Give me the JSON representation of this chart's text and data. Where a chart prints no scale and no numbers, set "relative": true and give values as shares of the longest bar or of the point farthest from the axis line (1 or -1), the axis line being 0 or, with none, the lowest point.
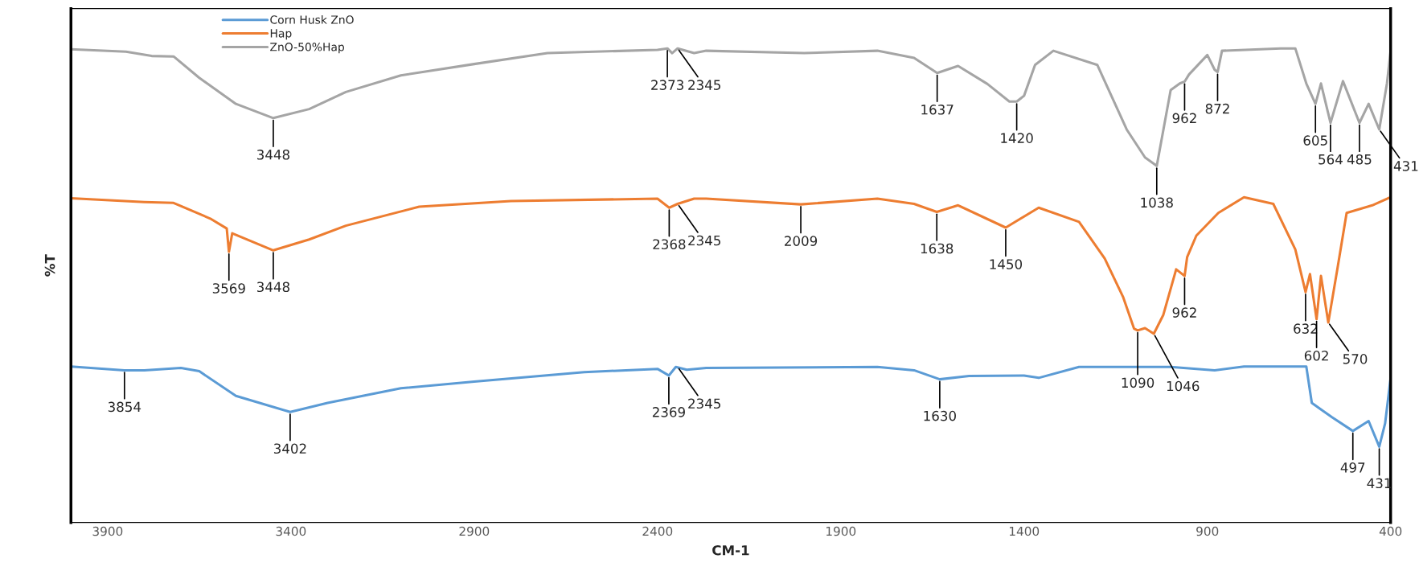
{
  "chart_data": {
    "type": "line",
    "xlabel": "CM-1",
    "ylabel": "%T",
    "relative": true,
    "tick_labels": "x",
    "grid": false,
    "legend": "top left",
    "xlim": [
      4000,
      400
    ],
    "xticks": [
      3900,
      3400,
      2900,
      2400,
      1900,
      1400,
      900,
      400
    ],
    "series": [
      {
        "name": "Corn Husk ZnO",
        "color": "#5b9bd5",
        "x": [
          4000,
          3854,
          3800,
          3700,
          3650,
          3550,
          3402,
          3300,
          3100,
          2900,
          2600,
          2400,
          2369,
          2350,
          2320,
          2267,
          1800,
          1700,
          1630,
          1550,
          1400,
          1360,
          1250,
          1000,
          880,
          800,
          650,
          630,
          615,
          560,
          503,
          460,
          431,
          415,
          400
        ],
        "values": [
          0.329,
          0.321,
          0.321,
          0.326,
          0.319,
          0.267,
          0.233,
          0.252,
          0.283,
          0.297,
          0.317,
          0.324,
          0.31,
          0.328,
          0.322,
          0.326,
          0.328,
          0.321,
          0.302,
          0.309,
          0.31,
          0.305,
          0.328,
          0.328,
          0.321,
          0.329,
          0.329,
          0.329,
          0.252,
          0.222,
          0.193,
          0.214,
          0.16,
          0.209,
          0.305
        ]
      },
      {
        "name": "Hap",
        "color": "#ed7d31",
        "x": [
          4000,
          3800,
          3720,
          3620,
          3575,
          3569,
          3560,
          3448,
          3350,
          3250,
          3050,
          2800,
          2400,
          2368,
          2345,
          2300,
          2267,
          2009,
          1800,
          1700,
          1638,
          1580,
          1450,
          1360,
          1250,
          1180,
          1130,
          1100,
          1090,
          1070,
          1046,
          1020,
          985,
          962,
          955,
          930,
          870,
          800,
          720,
          660,
          632,
          620,
          602,
          590,
          570,
          545,
          520,
          450,
          400
        ],
        "values": [
          0.684,
          0.676,
          0.674,
          0.641,
          0.62,
          0.571,
          0.61,
          0.574,
          0.597,
          0.626,
          0.666,
          0.678,
          0.683,
          0.664,
          0.672,
          0.683,
          0.683,
          0.671,
          0.683,
          0.672,
          0.655,
          0.669,
          0.622,
          0.664,
          0.634,
          0.557,
          0.476,
          0.409,
          0.405,
          0.41,
          0.398,
          0.438,
          0.534,
          0.52,
          0.56,
          0.605,
          0.653,
          0.686,
          0.672,
          0.576,
          0.486,
          0.524,
          0.429,
          0.52,
          0.422,
          0.536,
          0.653,
          0.669,
          0.686
        ]
      },
      {
        "name": "ZnO-50%Hap",
        "color": "#a5a5a5",
        "x": [
          4000,
          3850,
          3780,
          3720,
          3650,
          3550,
          3448,
          3350,
          3250,
          3100,
          2900,
          2700,
          2400,
          2373,
          2360,
          2345,
          2300,
          2267,
          2000,
          1800,
          1700,
          1637,
          1580,
          1500,
          1440,
          1420,
          1400,
          1370,
          1320,
          1200,
          1120,
          1070,
          1038,
          1000,
          975,
          962,
          950,
          900,
          880,
          872,
          860,
          700,
          660,
          630,
          605,
          590,
          564,
          530,
          485,
          460,
          431,
          410,
          400
        ],
        "values": [
          0.998,
          0.993,
          0.984,
          0.983,
          0.938,
          0.883,
          0.853,
          0.872,
          0.908,
          0.943,
          0.967,
          0.99,
          0.997,
          1.0,
          0.99,
          1.0,
          0.99,
          0.995,
          0.99,
          0.995,
          0.98,
          0.948,
          0.963,
          0.925,
          0.888,
          0.888,
          0.9,
          0.965,
          0.995,
          0.965,
          0.829,
          0.77,
          0.752,
          0.912,
          0.926,
          0.93,
          0.945,
          0.986,
          0.955,
          0.95,
          0.995,
          1.0,
          1.0,
          0.926,
          0.883,
          0.926,
          0.843,
          0.931,
          0.843,
          0.883,
          0.829,
          0.926,
          0.995
        ]
      }
    ],
    "annotations": [
      {
        "text": "3448",
        "x": 3448,
        "y": 0.853
      },
      {
        "text": "2373",
        "x": 2373,
        "y": 1.0
      },
      {
        "text": "2345",
        "x": 2345,
        "y": 1.0
      },
      {
        "text": "1637",
        "x": 1637,
        "y": 0.948
      },
      {
        "text": "1420",
        "x": 1420,
        "y": 0.888
      },
      {
        "text": "1038",
        "x": 1038,
        "y": 0.752
      },
      {
        "text": "962",
        "x": 962,
        "y": 0.93
      },
      {
        "text": "872",
        "x": 872,
        "y": 0.95
      },
      {
        "text": "605",
        "x": 605,
        "y": 0.883
      },
      {
        "text": "564",
        "x": 564,
        "y": 0.843
      },
      {
        "text": "485",
        "x": 485,
        "y": 0.843
      },
      {
        "text": "431",
        "x": 431,
        "y": 0.829
      },
      {
        "text": "3569",
        "x": 3569,
        "y": 0.571
      },
      {
        "text": "3448",
        "x": 3448,
        "y": 0.574
      },
      {
        "text": "2368",
        "x": 2368,
        "y": 0.664
      },
      {
        "text": "2345",
        "x": 2345,
        "y": 0.672
      },
      {
        "text": "2009",
        "x": 2009,
        "y": 0.671
      },
      {
        "text": "1638",
        "x": 1638,
        "y": 0.655
      },
      {
        "text": "1450",
        "x": 1450,
        "y": 0.622
      },
      {
        "text": "1090",
        "x": 1090,
        "y": 0.405
      },
      {
        "text": "1046",
        "x": 1046,
        "y": 0.398
      },
      {
        "text": "962",
        "x": 962,
        "y": 0.52
      },
      {
        "text": "632",
        "x": 632,
        "y": 0.486
      },
      {
        "text": "602",
        "x": 602,
        "y": 0.429
      },
      {
        "text": "570",
        "x": 570,
        "y": 0.422
      },
      {
        "text": "3854",
        "x": 3854,
        "y": 0.321
      },
      {
        "text": "3402",
        "x": 3402,
        "y": 0.233
      },
      {
        "text": "2369",
        "x": 2369,
        "y": 0.31
      },
      {
        "text": "2345",
        "x": 2345,
        "y": 0.328
      },
      {
        "text": "1630",
        "x": 1630,
        "y": 0.302
      },
      {
        "text": "497",
        "x": 503,
        "y": 0.193
      },
      {
        "text": "431",
        "x": 431,
        "y": 0.16
      }
    ]
  }
}
